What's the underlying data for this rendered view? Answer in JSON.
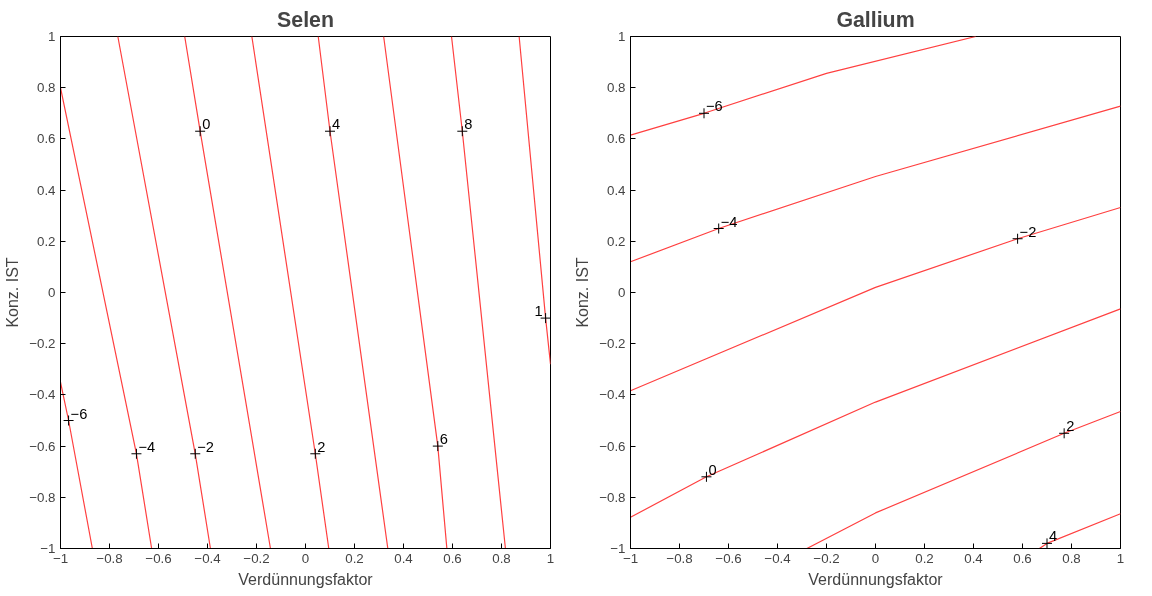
{
  "chart_data": [
    {
      "type": "line",
      "title": "Selen",
      "xlabel": "Verdünnungsfaktor",
      "ylabel": "Konz. IST",
      "xlim": [
        -1,
        1
      ],
      "ylim": [
        -1,
        1
      ],
      "xticks": [
        -1,
        -0.8,
        -0.6,
        -0.4,
        -0.2,
        0,
        0.2,
        0.4,
        0.6,
        0.8,
        1
      ],
      "yticks": [
        -1,
        -0.8,
        -0.6,
        -0.4,
        -0.2,
        0,
        0.2,
        0.4,
        0.6,
        0.8,
        1
      ],
      "grid": false,
      "marker": "none",
      "line_style": "solid",
      "series": [
        {
          "color": "#ff4040",
          "x": [
            -1,
            -0.967,
            -0.87
          ],
          "values": [
            -0.35,
            -0.5,
            -1
          ]
        },
        {
          "color": "#ff4040",
          "x": [
            -1,
            -0.69,
            -0.628
          ],
          "values": [
            0.8,
            -0.63,
            -1
          ]
        },
        {
          "color": "#ff4040",
          "x": [
            -0.766,
            -0.45,
            -0.388
          ],
          "values": [
            1,
            -0.63,
            -1
          ]
        },
        {
          "color": "#ff4040",
          "x": [
            -0.493,
            -0.43,
            -0.143
          ],
          "values": [
            1,
            0.63,
            -1
          ]
        },
        {
          "color": "#ff4040",
          "x": [
            -0.219,
            0.04,
            0.095
          ],
          "values": [
            1,
            -0.63,
            -1
          ]
        },
        {
          "color": "#ff4040",
          "x": [
            0.052,
            0.1,
            0.336
          ],
          "values": [
            1,
            0.63,
            -1
          ]
        },
        {
          "color": "#ff4040",
          "x": [
            0.319,
            0.54,
            0.577
          ],
          "values": [
            1,
            -0.6,
            -1
          ]
        },
        {
          "color": "#ff4040",
          "x": [
            0.596,
            0.64,
            0.816
          ],
          "values": [
            1,
            0.63,
            -1
          ]
        },
        {
          "color": "#ff4040",
          "x": [
            0.872,
            0.98,
            1
          ],
          "values": [
            1,
            -0.1,
            -0.28
          ]
        }
      ],
      "annotations": [
        {
          "text": "−6",
          "x": -0.967,
          "y": -0.5
        },
        {
          "text": "−4",
          "x": -0.69,
          "y": -0.63
        },
        {
          "text": "−2",
          "x": -0.45,
          "y": -0.63
        },
        {
          "text": "0",
          "x": -0.43,
          "y": 0.63
        },
        {
          "text": "2",
          "x": 0.04,
          "y": -0.63
        },
        {
          "text": "4",
          "x": 0.1,
          "y": 0.63
        },
        {
          "text": "6",
          "x": 0.54,
          "y": -0.6
        },
        {
          "text": "8",
          "x": 0.64,
          "y": 0.63
        },
        {
          "text": "1",
          "x": 0.98,
          "y": -0.1
        }
      ]
    },
    {
      "type": "line",
      "title": "Gallium",
      "xlabel": "Verdünnungsfaktor",
      "ylabel": "Konz. IST",
      "xlim": [
        -1,
        1
      ],
      "ylim": [
        -1,
        1
      ],
      "xticks": [
        -1,
        -0.8,
        -0.6,
        -0.4,
        -0.2,
        0,
        0.2,
        0.4,
        0.6,
        0.8,
        1
      ],
      "yticks": [
        -1,
        -0.8,
        -0.6,
        -0.4,
        -0.2,
        0,
        0.2,
        0.4,
        0.6,
        0.8,
        1
      ],
      "grid": false,
      "marker": "none",
      "line_style": "solid",
      "series": [
        {
          "color": "#ff4040",
          "x": [
            -1,
            -0.7,
            -0.2,
            0.409
          ],
          "values": [
            0.615,
            0.7,
            0.856,
            1
          ]
        },
        {
          "color": "#ff4040",
          "x": [
            -1,
            -0.64,
            0,
            1
          ],
          "values": [
            0.12,
            0.25,
            0.453,
            0.728
          ]
        },
        {
          "color": "#ff4040",
          "x": [
            -1,
            0,
            0.58,
            1
          ],
          "values": [
            -0.384,
            0.02,
            0.21,
            0.332
          ]
        },
        {
          "color": "#ff4040",
          "x": [
            -1,
            -0.69,
            0,
            1
          ],
          "values": [
            -0.878,
            -0.72,
            -0.428,
            -0.064
          ]
        },
        {
          "color": "#ff4040",
          "x": [
            -0.28,
            0,
            0.77,
            1
          ],
          "values": [
            -1,
            -0.861,
            -0.55,
            -0.465
          ]
        },
        {
          "color": "#ff4040",
          "x": [
            0.669,
            0.7,
            1
          ],
          "values": [
            -1,
            -0.98,
            -0.864
          ]
        }
      ],
      "annotations": [
        {
          "text": "−6",
          "x": -0.7,
          "y": 0.7
        },
        {
          "text": "−4",
          "x": -0.64,
          "y": 0.25
        },
        {
          "text": "−2",
          "x": 0.58,
          "y": 0.21
        },
        {
          "text": "0",
          "x": -0.69,
          "y": -0.72
        },
        {
          "text": "2",
          "x": 0.77,
          "y": -0.55
        },
        {
          "text": "4",
          "x": 0.7,
          "y": -0.98
        }
      ]
    }
  ]
}
